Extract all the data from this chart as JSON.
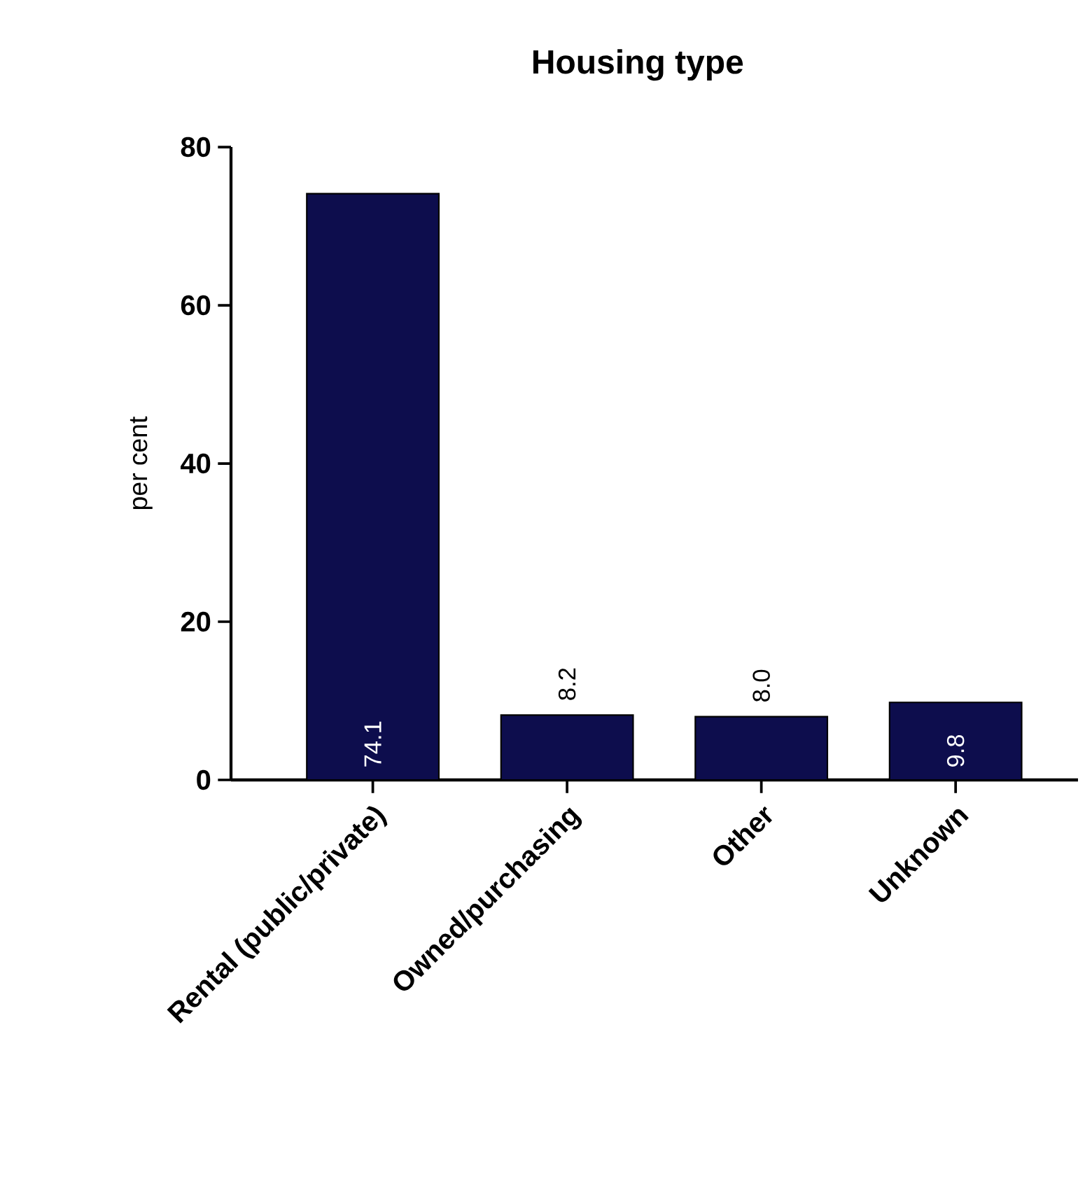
{
  "chart_data": {
    "type": "bar",
    "title": "Housing type",
    "ylabel": "per cent",
    "categories": [
      "Rental (public/private)",
      "Owned/purchasing",
      "Other",
      "Unknown"
    ],
    "values": [
      74.1,
      8.2,
      8.0,
      9.8
    ],
    "value_labels": [
      "74.1",
      "8.2",
      "8.0",
      "9.8"
    ],
    "color": "#0d0d4d",
    "ylim": [
      0,
      80
    ],
    "yticks": [
      0,
      20,
      40,
      60,
      80
    ]
  }
}
